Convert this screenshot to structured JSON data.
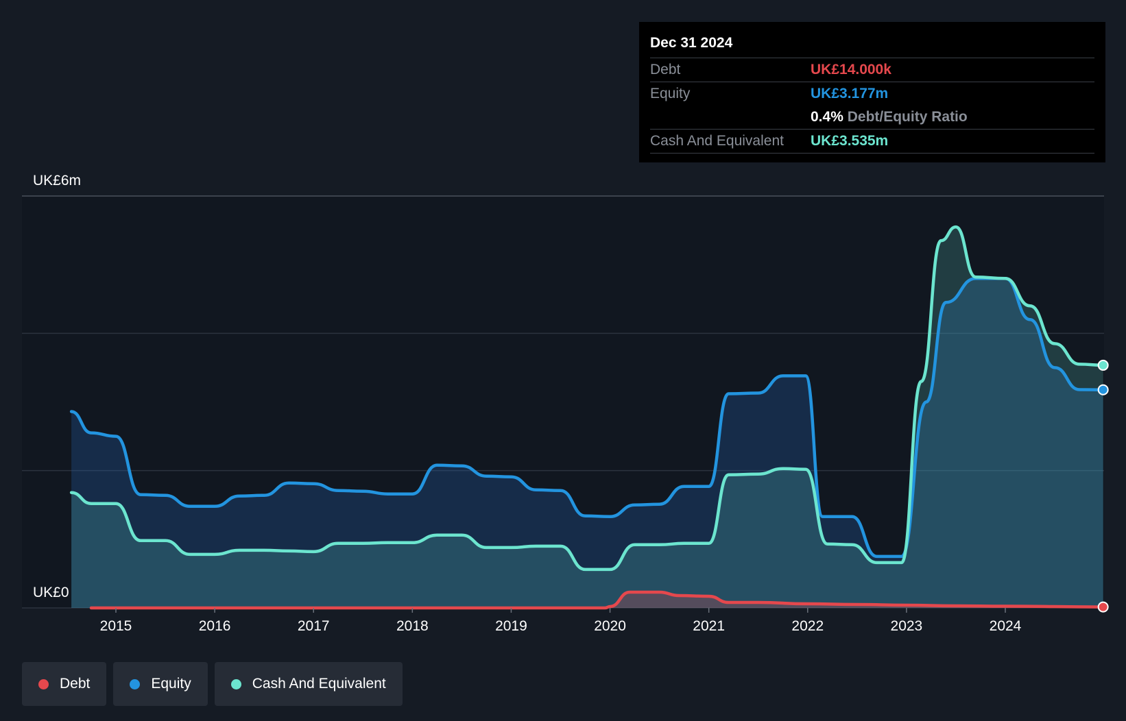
{
  "tooltip": {
    "date": "Dec 31 2024",
    "debt_label": "Debt",
    "debt_value": "UK£14.000k",
    "equity_label": "Equity",
    "equity_value": "UK£3.177m",
    "ratio_value": "0.4%",
    "ratio_label": "Debt/Equity Ratio",
    "cash_label": "Cash And Equivalent",
    "cash_value": "UK£3.535m"
  },
  "legend": {
    "debt": "Debt",
    "equity": "Equity",
    "cash": "Cash And Equivalent"
  },
  "colors": {
    "debt": "#e5484d",
    "equity": "#2394df",
    "cash": "#6ce5cf",
    "background": "#151b24",
    "plot_background": "#111720"
  },
  "chart_data": {
    "type": "area",
    "y_unit": "UK£m",
    "ylim": [
      0,
      6
    ],
    "y_tick_labels": [
      {
        "value": 6,
        "label": "UK£6m"
      },
      {
        "value": 0,
        "label": "UK£0"
      }
    ],
    "y_gridlines": [
      0,
      2,
      4,
      6
    ],
    "xlim": [
      2014.55,
      2024.99
    ],
    "x_ticks": [
      2015,
      2016,
      2017,
      2018,
      2019,
      2020,
      2021,
      2022,
      2023,
      2024
    ],
    "series": [
      {
        "name": "Debt",
        "points": [
          [
            2014.75,
            0
          ],
          [
            2019.95,
            0
          ],
          [
            2020.0,
            0.02
          ],
          [
            2020.2,
            0.23
          ],
          [
            2020.5,
            0.23
          ],
          [
            2020.7,
            0.18
          ],
          [
            2021.0,
            0.17
          ],
          [
            2021.2,
            0.08
          ],
          [
            2021.5,
            0.08
          ],
          [
            2022.0,
            0.06
          ],
          [
            2022.5,
            0.05
          ],
          [
            2023.0,
            0.04
          ],
          [
            2023.5,
            0.03
          ],
          [
            2024.0,
            0.025
          ],
          [
            2024.99,
            0.014
          ]
        ]
      },
      {
        "name": "Equity",
        "points": [
          [
            2014.55,
            2.86
          ],
          [
            2014.75,
            2.55
          ],
          [
            2015.0,
            2.5
          ],
          [
            2015.25,
            1.65
          ],
          [
            2015.5,
            1.64
          ],
          [
            2015.75,
            1.48
          ],
          [
            2016.0,
            1.48
          ],
          [
            2016.25,
            1.63
          ],
          [
            2016.5,
            1.64
          ],
          [
            2016.75,
            1.82
          ],
          [
            2017.0,
            1.81
          ],
          [
            2017.25,
            1.71
          ],
          [
            2017.5,
            1.7
          ],
          [
            2017.75,
            1.66
          ],
          [
            2018.0,
            1.66
          ],
          [
            2018.25,
            2.08
          ],
          [
            2018.5,
            2.07
          ],
          [
            2018.75,
            1.92
          ],
          [
            2019.0,
            1.91
          ],
          [
            2019.25,
            1.72
          ],
          [
            2019.5,
            1.71
          ],
          [
            2019.75,
            1.34
          ],
          [
            2020.0,
            1.33
          ],
          [
            2020.25,
            1.5
          ],
          [
            2020.5,
            1.51
          ],
          [
            2020.75,
            1.77
          ],
          [
            2021.0,
            1.77
          ],
          [
            2021.2,
            3.12
          ],
          [
            2021.5,
            3.13
          ],
          [
            2021.75,
            3.38
          ],
          [
            2021.98,
            3.38
          ],
          [
            2022.15,
            1.33
          ],
          [
            2022.45,
            1.33
          ],
          [
            2022.7,
            0.75
          ],
          [
            2022.95,
            0.75
          ],
          [
            2023.2,
            3.0
          ],
          [
            2023.4,
            4.45
          ],
          [
            2023.7,
            4.8
          ],
          [
            2024.0,
            4.8
          ],
          [
            2024.25,
            4.2
          ],
          [
            2024.5,
            3.5
          ],
          [
            2024.75,
            3.18
          ],
          [
            2024.99,
            3.177
          ]
        ]
      },
      {
        "name": "Cash And Equivalent",
        "points": [
          [
            2014.55,
            1.68
          ],
          [
            2014.75,
            1.52
          ],
          [
            2015.0,
            1.52
          ],
          [
            2015.25,
            0.98
          ],
          [
            2015.5,
            0.98
          ],
          [
            2015.75,
            0.78
          ],
          [
            2016.0,
            0.78
          ],
          [
            2016.25,
            0.84
          ],
          [
            2016.5,
            0.84
          ],
          [
            2016.75,
            0.83
          ],
          [
            2017.0,
            0.82
          ],
          [
            2017.25,
            0.94
          ],
          [
            2017.5,
            0.94
          ],
          [
            2017.75,
            0.95
          ],
          [
            2018.0,
            0.95
          ],
          [
            2018.25,
            1.06
          ],
          [
            2018.5,
            1.06
          ],
          [
            2018.75,
            0.88
          ],
          [
            2019.0,
            0.88
          ],
          [
            2019.25,
            0.9
          ],
          [
            2019.5,
            0.9
          ],
          [
            2019.75,
            0.56
          ],
          [
            2020.0,
            0.56
          ],
          [
            2020.25,
            0.92
          ],
          [
            2020.5,
            0.92
          ],
          [
            2020.75,
            0.94
          ],
          [
            2021.0,
            0.94
          ],
          [
            2021.2,
            1.94
          ],
          [
            2021.5,
            1.95
          ],
          [
            2021.75,
            2.03
          ],
          [
            2021.98,
            2.02
          ],
          [
            2022.2,
            0.93
          ],
          [
            2022.45,
            0.92
          ],
          [
            2022.7,
            0.66
          ],
          [
            2022.95,
            0.66
          ],
          [
            2023.15,
            3.3
          ],
          [
            2023.35,
            5.35
          ],
          [
            2023.5,
            5.55
          ],
          [
            2023.7,
            4.82
          ],
          [
            2024.0,
            4.8
          ],
          [
            2024.25,
            4.4
          ],
          [
            2024.5,
            3.85
          ],
          [
            2024.75,
            3.55
          ],
          [
            2024.99,
            3.535
          ]
        ]
      }
    ]
  }
}
